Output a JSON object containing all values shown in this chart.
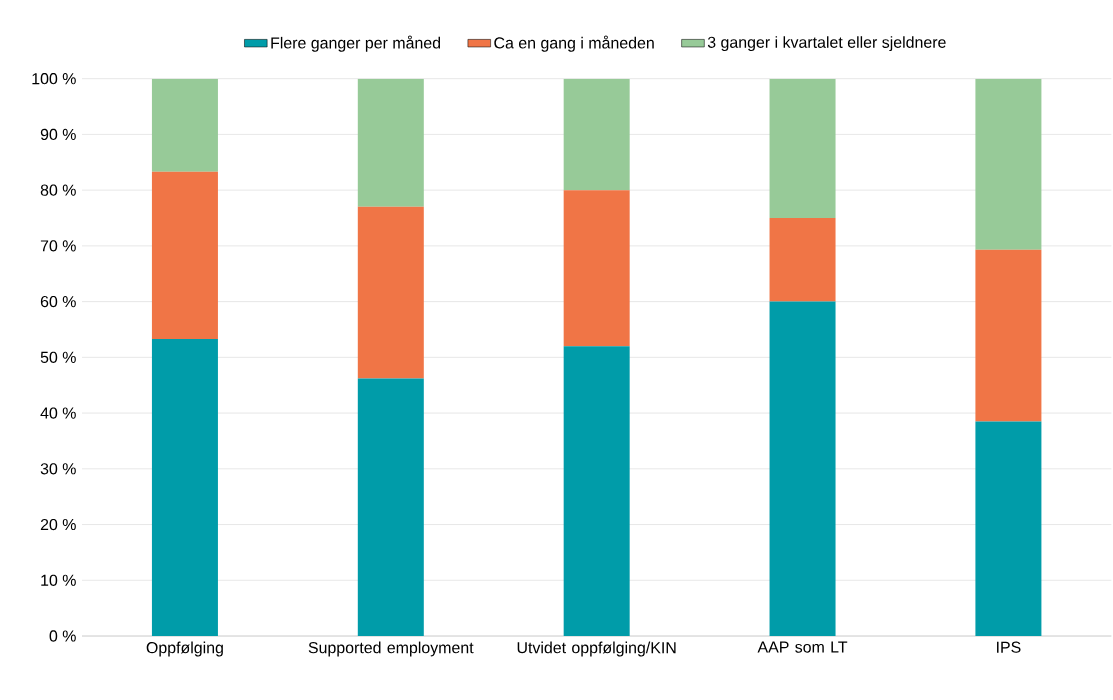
{
  "chart_data": {
    "type": "bar",
    "stacked": true,
    "categories": [
      "Oppfølging",
      "Supported employment",
      "Utvidet oppfølging/KIN",
      "AAP som LT",
      "IPS"
    ],
    "series": [
      {
        "name": "Flere ganger per måned",
        "color": "#009ca9",
        "values": [
          53.3,
          46.2,
          52.0,
          60.0,
          38.5
        ]
      },
      {
        "name": "Ca en gang i måneden",
        "color": "#f07546",
        "values": [
          30.0,
          30.8,
          28.0,
          15.0,
          30.8
        ]
      },
      {
        "name": "3 ganger i kvartalet eller sjeldnere",
        "color": "#97ca98",
        "values": [
          16.7,
          23.0,
          20.0,
          25.0,
          30.7
        ]
      }
    ],
    "ylim": [
      0,
      100
    ],
    "yticks": [
      {
        "value": 0,
        "label": "0 %"
      },
      {
        "value": 10,
        "label": "10 %"
      },
      {
        "value": 20,
        "label": "20 %"
      },
      {
        "value": 30,
        "label": "30 %"
      },
      {
        "value": 40,
        "label": "40 %"
      },
      {
        "value": 50,
        "label": "50 %"
      },
      {
        "value": 60,
        "label": "60 %"
      },
      {
        "value": 70,
        "label": "70 %"
      },
      {
        "value": 80,
        "label": "80 %"
      },
      {
        "value": 90,
        "label": "90 %"
      },
      {
        "value": 100,
        "label": "100 %"
      }
    ],
    "grid": "y",
    "legend": "top"
  }
}
